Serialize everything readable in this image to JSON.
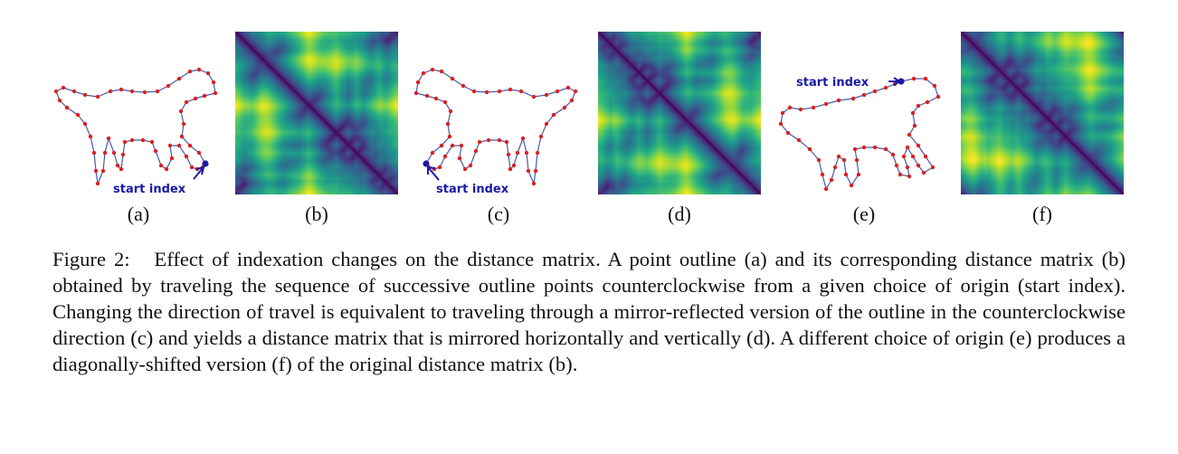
{
  "panels": [
    {
      "label": "(a)",
      "kind": "outline",
      "annotation": "start index"
    },
    {
      "label": "(b)",
      "kind": "matrix"
    },
    {
      "label": "(c)",
      "kind": "outline",
      "annotation": "start index"
    },
    {
      "label": "(d)",
      "kind": "matrix"
    },
    {
      "label": "(e)",
      "kind": "outline",
      "annotation": "start index"
    },
    {
      "label": "(f)",
      "kind": "matrix"
    }
  ],
  "caption": {
    "prefix": "Figure 2:",
    "text": "Effect of indexation changes on the distance matrix. A point outline (a) and its corresponding distance matrix (b) obtained by traveling the sequence of successive outline points counterclockwise from a given choice of origin (start index). Changing the direction of travel is equivalent to traveling through a mirror-reflected version of the outline in the counterclockwise direction (c) and yields a distance matrix that is mirrored horizontally and vertically (d). A different choice of origin (e) produces a diagonally-shifted version (f) of the original distance matrix (b)."
  },
  "colors": {
    "outline_line": "#4a5aa8",
    "outline_point": "#dd1f1f",
    "annotation": "#1a1aa6"
  }
}
